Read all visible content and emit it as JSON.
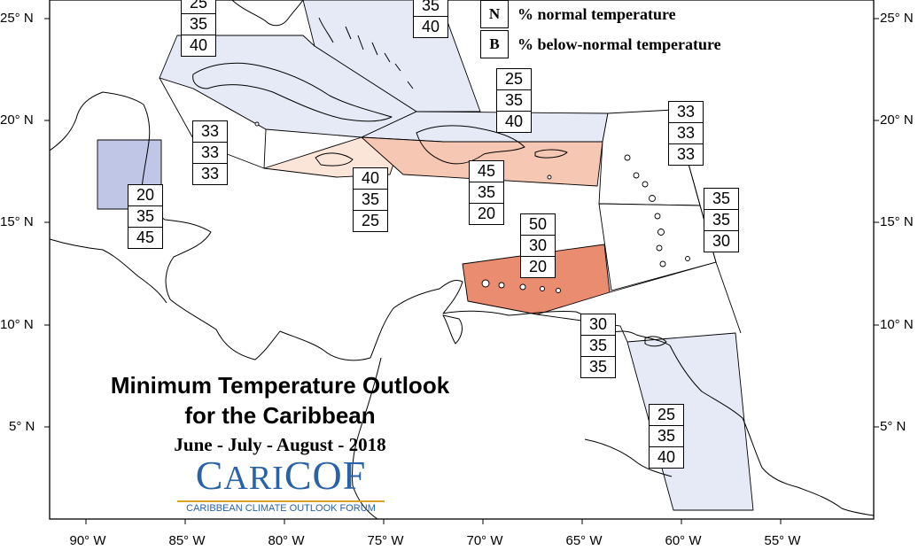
{
  "map": {
    "lat_labels": [
      "25° N",
      "20° N",
      "15° N",
      "10° N",
      "5° N"
    ],
    "lon_labels": [
      "90° W",
      "85° W",
      "80° W",
      "75° W",
      "70° W",
      "65° W",
      "60° W",
      "55° W"
    ]
  },
  "legend": {
    "items": [
      {
        "key": "N",
        "text": "% normal temperature"
      },
      {
        "key": "B",
        "text": "% below-normal temperature"
      }
    ]
  },
  "title": {
    "line1": "Minimum Temperature Outlook",
    "line2": "for the Caribbean",
    "season": "June - July - August - 2018"
  },
  "logo": {
    "word_a": "C",
    "word_b": "ARI",
    "word_c": "COF",
    "tagline": "CARIBBEAN CLIMATE OUTLOOK FORUM"
  },
  "colors": {
    "below_normal_shade": "#c0c6e6",
    "light_below_shade": "#e6eaf6",
    "above_normal_strong": "#ea8c70",
    "above_normal_medium": "#f6c8b4",
    "above_normal_light": "#fbe4d8"
  },
  "regions": [
    {
      "name": "bahamas-north",
      "probabilities": [
        "25",
        "35",
        "40"
      ]
    },
    {
      "name": "turks-caicos",
      "probabilities": [
        "35",
        "40"
      ]
    },
    {
      "name": "cuba",
      "probabilities": [
        "25",
        "35",
        "40"
      ]
    },
    {
      "name": "cayman",
      "probabilities": [
        "33",
        "33",
        "33"
      ]
    },
    {
      "name": "belize",
      "probabilities": [
        "20",
        "35",
        "45"
      ]
    },
    {
      "name": "jamaica",
      "probabilities": [
        "40",
        "35",
        "25"
      ]
    },
    {
      "name": "hispaniola",
      "probabilities": [
        "45",
        "35",
        "20"
      ]
    },
    {
      "name": "netherlands-antilles",
      "probabilities": [
        "50",
        "30",
        "20"
      ]
    },
    {
      "name": "northern-lesser-antilles",
      "probabilities": [
        "33",
        "33",
        "33"
      ]
    },
    {
      "name": "windward-islands",
      "probabilities": [
        "35",
        "35",
        "30"
      ]
    },
    {
      "name": "trinidad",
      "probabilities": [
        "30",
        "35",
        "35"
      ]
    },
    {
      "name": "guianas",
      "probabilities": [
        "25",
        "35",
        "40"
      ]
    }
  ]
}
